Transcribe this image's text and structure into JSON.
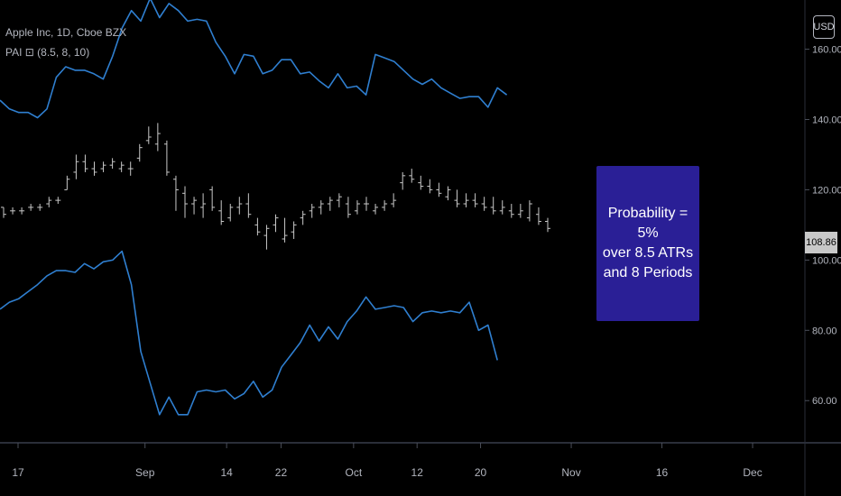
{
  "legend": {
    "title": "Apple Inc, 1D, Cboe BZX",
    "indicator": "PAI ⊡ (8.5, 8, 10)"
  },
  "currency": "USD",
  "last_price": "108.86",
  "annotation": {
    "lines": [
      "Probability = 5%",
      "over 8.5 ATRs",
      "and 8 Periods"
    ]
  },
  "colors": {
    "band": "#2f7fd0",
    "bars": "#c8c8c8",
    "annotation_bg": "#2a1f96",
    "background": "#000000",
    "axis_text": "#b2b5be"
  },
  "chart_data": {
    "type": "line",
    "title": "",
    "ylim": [
      48,
      174
    ],
    "y_ticks": [
      "60.00",
      "80.00",
      "100.00",
      "120.00",
      "140.00",
      "160.00"
    ],
    "y_tick_values": [
      60,
      80,
      100,
      120,
      140,
      160
    ],
    "x_tick_labels": [
      "17",
      "Sep",
      "14",
      "22",
      "Oct",
      "12",
      "20",
      "Nov",
      "16",
      "Dec"
    ],
    "x_tick_index": [
      0,
      14,
      23,
      29,
      37,
      44,
      51,
      61,
      71,
      81
    ],
    "series": [
      {
        "values": [
          145.5,
          143,
          142,
          142,
          140.5,
          143,
          152,
          155,
          154,
          154,
          153,
          151.5,
          158,
          166,
          171,
          168,
          174.5,
          169,
          173,
          171,
          168,
          168.5,
          168,
          162,
          158,
          153,
          158.5,
          158,
          153,
          154,
          157,
          157,
          153,
          153.5,
          151,
          149,
          153,
          149,
          149.5,
          147,
          158.5,
          157.5,
          156.5,
          154,
          151.5,
          150,
          151.5,
          149,
          147.5,
          146,
          146.5,
          146.5,
          143.5,
          149,
          147
        ]
      },
      {
        "values": [
          86,
          88,
          89,
          91,
          93,
          95.5,
          97,
          97,
          96.5,
          99,
          97.5,
          99.5,
          100,
          102.5,
          93,
          74,
          65,
          56,
          61,
          56,
          56,
          62.5,
          63,
          62.5,
          63,
          60.5,
          62,
          65.5,
          61,
          63,
          69.5,
          73,
          76.5,
          81.5,
          77,
          81,
          77.5,
          82.5,
          85.5,
          89.5,
          86,
          86.5,
          87,
          86.5,
          82.5,
          85,
          85.5,
          85,
          85.5,
          85,
          88,
          80,
          81.5,
          71.5
        ]
      }
    ],
    "ohlc": [
      {
        "o": 115,
        "h": 115,
        "l": 112,
        "c": 113
      },
      {
        "o": 114,
        "h": 115,
        "l": 113,
        "c": 114
      },
      {
        "o": 114,
        "h": 115,
        "l": 113,
        "c": 114
      },
      {
        "o": 115,
        "h": 116,
        "l": 114,
        "c": 115
      },
      {
        "o": 115,
        "h": 116,
        "l": 114,
        "c": 115
      },
      {
        "o": 116,
        "h": 118,
        "l": 115,
        "c": 117
      },
      {
        "o": 117,
        "h": 118,
        "l": 116,
        "c": 117
      },
      {
        "o": 120,
        "h": 124,
        "l": 120,
        "c": 123
      },
      {
        "o": 125,
        "h": 130,
        "l": 123,
        "c": 128
      },
      {
        "o": 128,
        "h": 130,
        "l": 125,
        "c": 126
      },
      {
        "o": 126,
        "h": 128,
        "l": 124,
        "c": 125
      },
      {
        "o": 126,
        "h": 128,
        "l": 125,
        "c": 127
      },
      {
        "o": 127,
        "h": 129,
        "l": 126,
        "c": 128
      },
      {
        "o": 126,
        "h": 128,
        "l": 125,
        "c": 127
      },
      {
        "o": 126,
        "h": 128,
        "l": 124,
        "c": 126
      },
      {
        "o": 129,
        "h": 133,
        "l": 128,
        "c": 132
      },
      {
        "o": 134,
        "h": 138,
        "l": 133,
        "c": 135
      },
      {
        "o": 133,
        "h": 139,
        "l": 131,
        "c": 136
      },
      {
        "o": 133,
        "h": 134,
        "l": 124,
        "c": 125
      },
      {
        "o": 123,
        "h": 124,
        "l": 114,
        "c": 120
      },
      {
        "o": 119,
        "h": 121,
        "l": 112,
        "c": 116
      },
      {
        "o": 116,
        "h": 118,
        "l": 113,
        "c": 117
      },
      {
        "o": 115,
        "h": 119,
        "l": 112,
        "c": 116
      },
      {
        "o": 120,
        "h": 121,
        "l": 114,
        "c": 115
      },
      {
        "o": 114,
        "h": 117,
        "l": 110,
        "c": 111
      },
      {
        "o": 112,
        "h": 116,
        "l": 111,
        "c": 115
      },
      {
        "o": 115,
        "h": 118,
        "l": 113,
        "c": 116
      },
      {
        "o": 116,
        "h": 119,
        "l": 112,
        "c": 113
      },
      {
        "o": 110,
        "h": 112,
        "l": 107,
        "c": 108
      },
      {
        "o": 107,
        "h": 110,
        "l": 103,
        "c": 109
      },
      {
        "o": 110,
        "h": 113,
        "l": 108,
        "c": 112
      },
      {
        "o": 106,
        "h": 112,
        "l": 105,
        "c": 107
      },
      {
        "o": 108,
        "h": 111,
        "l": 106,
        "c": 110
      },
      {
        "o": 112,
        "h": 114,
        "l": 110,
        "c": 113
      },
      {
        "o": 114,
        "h": 116,
        "l": 112,
        "c": 115
      },
      {
        "o": 115,
        "h": 117,
        "l": 113,
        "c": 116
      },
      {
        "o": 116,
        "h": 118,
        "l": 114,
        "c": 117
      },
      {
        "o": 117,
        "h": 119,
        "l": 115,
        "c": 118
      },
      {
        "o": 116,
        "h": 118,
        "l": 112,
        "c": 113
      },
      {
        "o": 114,
        "h": 117,
        "l": 113,
        "c": 116
      },
      {
        "o": 116,
        "h": 118,
        "l": 114,
        "c": 116
      },
      {
        "o": 114,
        "h": 116,
        "l": 113,
        "c": 115
      },
      {
        "o": 115,
        "h": 117,
        "l": 114,
        "c": 116
      },
      {
        "o": 116,
        "h": 119,
        "l": 115,
        "c": 117
      },
      {
        "o": 122,
        "h": 125,
        "l": 120,
        "c": 124
      },
      {
        "o": 124,
        "h": 126,
        "l": 122,
        "c": 123
      },
      {
        "o": 122,
        "h": 124,
        "l": 120,
        "c": 121
      },
      {
        "o": 121,
        "h": 123,
        "l": 119,
        "c": 120
      },
      {
        "o": 120,
        "h": 122,
        "l": 118,
        "c": 119
      },
      {
        "o": 118,
        "h": 121,
        "l": 117,
        "c": 120
      },
      {
        "o": 117,
        "h": 120,
        "l": 115,
        "c": 116
      },
      {
        "o": 116,
        "h": 119,
        "l": 115,
        "c": 117
      },
      {
        "o": 117,
        "h": 119,
        "l": 115,
        "c": 116
      },
      {
        "o": 116,
        "h": 118,
        "l": 114,
        "c": 115
      },
      {
        "o": 115,
        "h": 118,
        "l": 113,
        "c": 114
      },
      {
        "o": 114,
        "h": 117,
        "l": 113,
        "c": 115
      },
      {
        "o": 114,
        "h": 116,
        "l": 112,
        "c": 113
      },
      {
        "o": 113,
        "h": 116,
        "l": 112,
        "c": 114
      },
      {
        "o": 112,
        "h": 117,
        "l": 111,
        "c": 116
      },
      {
        "o": 113,
        "h": 115,
        "l": 110,
        "c": 111
      },
      {
        "o": 111,
        "h": 112,
        "l": 108,
        "c": 109
      }
    ],
    "grid": false
  }
}
